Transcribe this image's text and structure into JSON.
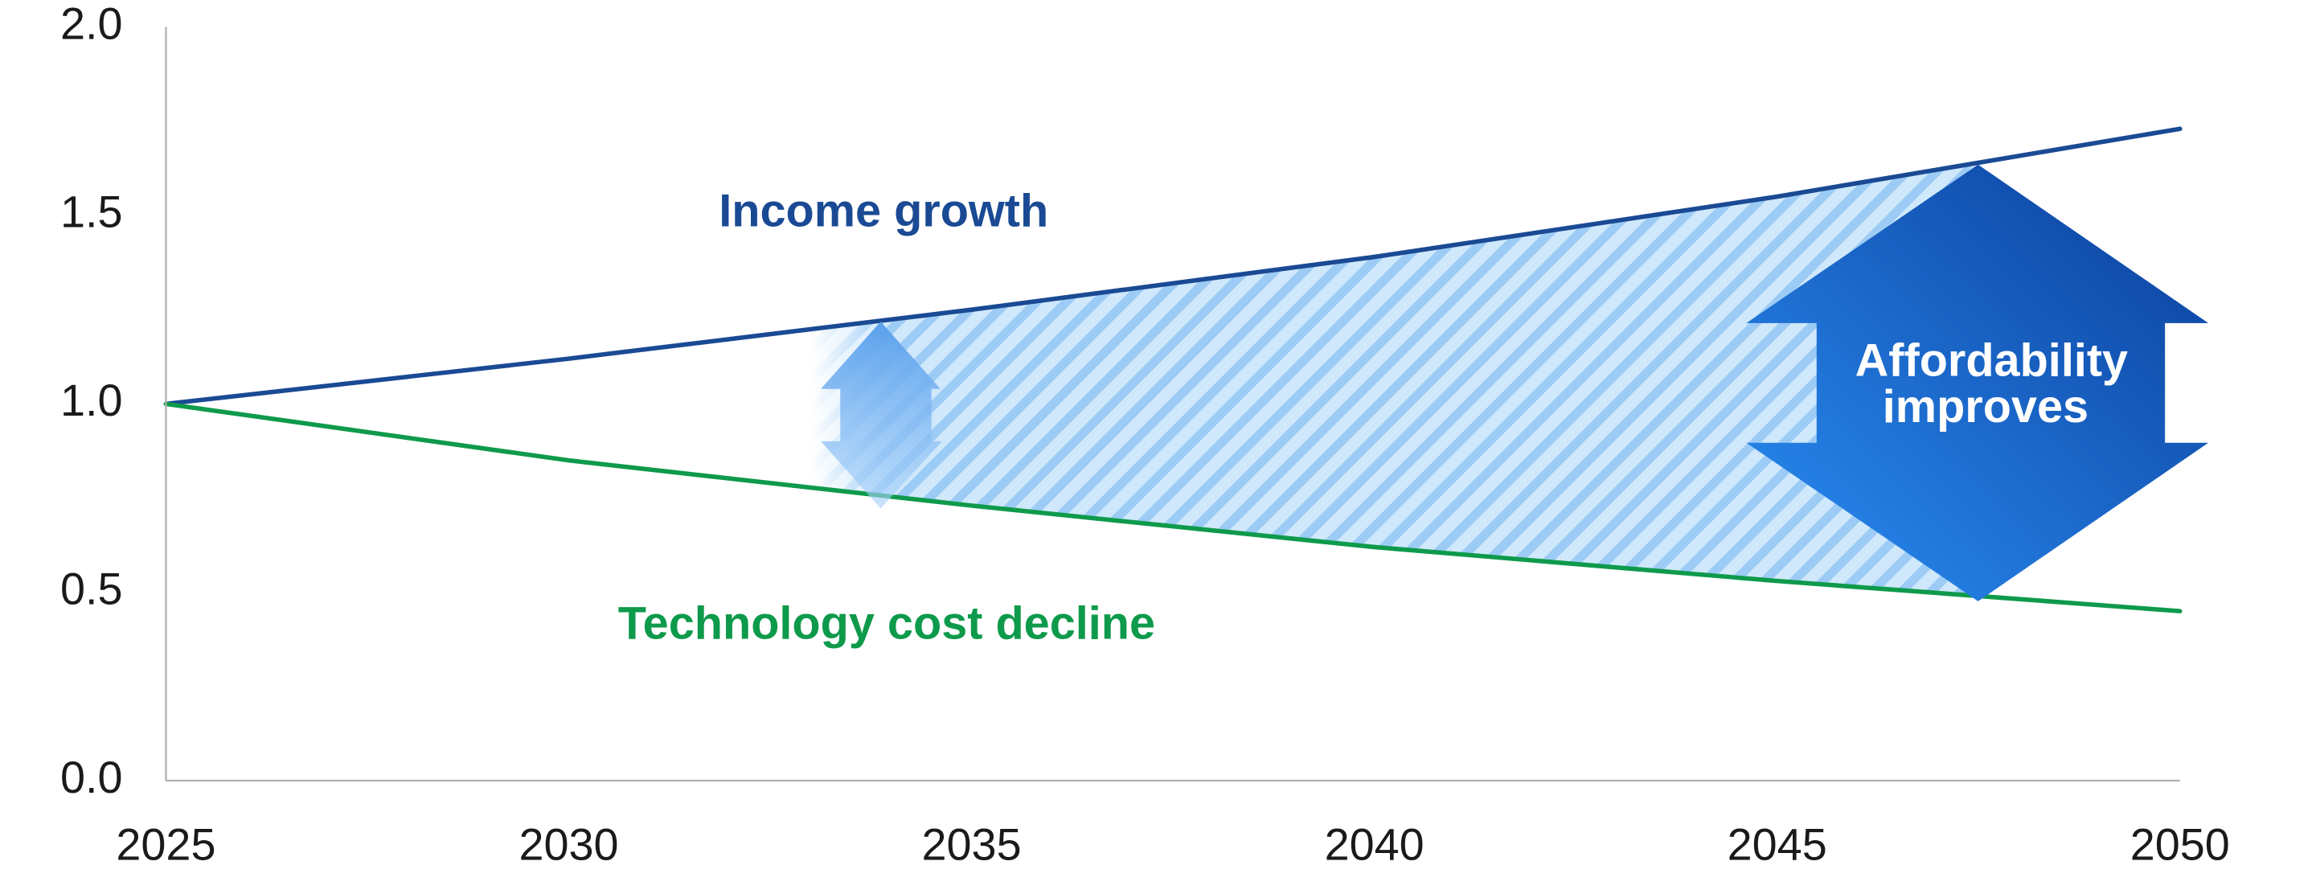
{
  "chart_data": {
    "type": "line",
    "x": [
      2025,
      2030,
      2035,
      2040,
      2045,
      2050
    ],
    "series": [
      {
        "name": "Income growth",
        "color": "#1a4a94",
        "values": [
          1.0,
          1.12,
          1.25,
          1.39,
          1.55,
          1.73
        ]
      },
      {
        "name": "Technology cost decline",
        "color": "#0e9a4b",
        "values": [
          1.0,
          0.85,
          0.73,
          0.62,
          0.53,
          0.45
        ]
      }
    ],
    "annotation": [
      "Affordability",
      "improves"
    ],
    "xlim": [
      2025,
      2050
    ],
    "xticks": [
      2025,
      2030,
      2035,
      2040,
      2045,
      2050
    ],
    "ylim": [
      0,
      2
    ],
    "yticks": [
      {
        "value": 0,
        "label": "0.0"
      },
      {
        "value": 0.5,
        "label": "0.5"
      },
      {
        "value": 1,
        "label": "1.0"
      },
      {
        "value": 1.5,
        "label": "1.5"
      },
      {
        "value": 2,
        "label": "2.0"
      }
    ],
    "grid": false
  }
}
